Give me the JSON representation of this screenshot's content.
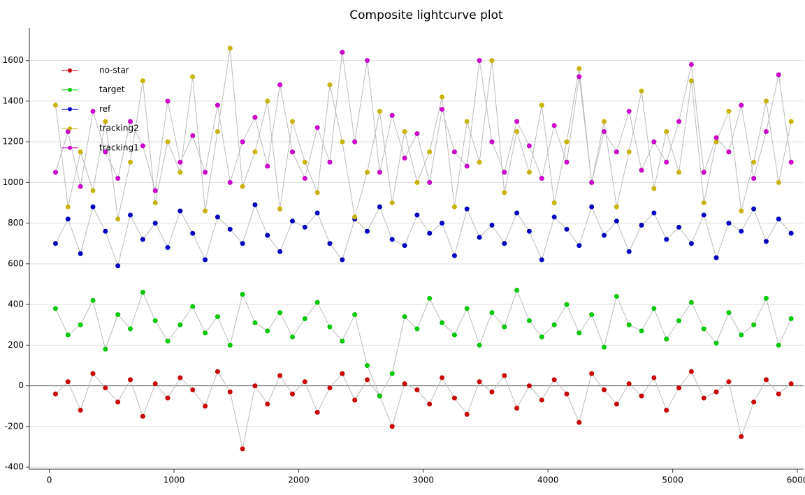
{
  "chart_data": {
    "type": "scatter",
    "title": "Composite lightcurve plot",
    "x": [
      50,
      150,
      250,
      350,
      450,
      550,
      650,
      750,
      850,
      950,
      1050,
      1150,
      1250,
      1350,
      1450,
      1550,
      1650,
      1750,
      1850,
      1950,
      2050,
      2150,
      2250,
      2350,
      2450,
      2550,
      2650,
      2750,
      2850,
      2950,
      3050,
      3150,
      3250,
      3350,
      3450,
      3550,
      3650,
      3750,
      3850,
      3950,
      4050,
      4150,
      4250,
      4350,
      4450,
      4550,
      4650,
      4750,
      4850,
      4950,
      5050,
      5150,
      5250,
      5350,
      5450,
      5550,
      5650,
      5750,
      5850,
      5950
    ],
    "series": [
      {
        "name": "no-star",
        "color": "#c80000",
        "values": [
          -40,
          20,
          -120,
          60,
          -10,
          -80,
          30,
          -150,
          10,
          -60,
          40,
          -20,
          -100,
          70,
          -30,
          -310,
          0,
          -90,
          50,
          -40,
          20,
          -130,
          -10,
          60,
          -70,
          30,
          -50,
          -200,
          10,
          -20,
          -90,
          40,
          -60,
          -140,
          20,
          -30,
          50,
          -110,
          0,
          -70,
          30,
          -40,
          -180,
          60,
          -20,
          -90,
          10,
          -50,
          40,
          -120,
          -10,
          70,
          -60,
          -30,
          20,
          -250,
          -80,
          30,
          -40,
          10
        ]
      },
      {
        "name": "target",
        "color": "#00c800",
        "values": [
          380,
          250,
          300,
          420,
          180,
          350,
          280,
          460,
          320,
          220,
          300,
          390,
          260,
          340,
          200,
          450,
          310,
          270,
          360,
          240,
          330,
          410,
          290,
          220,
          350,
          100,
          -50,
          60,
          340,
          280,
          430,
          310,
          250,
          380,
          200,
          360,
          290,
          470,
          320,
          240,
          300,
          400,
          260,
          350,
          190,
          440,
          300,
          270,
          380,
          230,
          320,
          410,
          280,
          210,
          360,
          250,
          300,
          430,
          200,
          330
        ]
      },
      {
        "name": "ref",
        "color": "#0000c0",
        "values": [
          700,
          820,
          650,
          880,
          760,
          590,
          840,
          720,
          800,
          680,
          860,
          750,
          620,
          830,
          770,
          700,
          890,
          740,
          660,
          810,
          780,
          850,
          700,
          620,
          820,
          760,
          880,
          720,
          690,
          840,
          750,
          800,
          640,
          870,
          730,
          790,
          700,
          850,
          760,
          620,
          830,
          770,
          690,
          880,
          740,
          810,
          660,
          790,
          850,
          720,
          780,
          700,
          840,
          630,
          800,
          760,
          870,
          710,
          820,
          750
        ]
      },
      {
        "name": "tracking2",
        "color": "#c8b400",
        "values": [
          1380,
          880,
          1150,
          960,
          1300,
          820,
          1100,
          1500,
          900,
          1200,
          1050,
          1520,
          860,
          1250,
          1660,
          980,
          1150,
          1400,
          870,
          1300,
          1100,
          950,
          1480,
          1200,
          830,
          1050,
          1350,
          900,
          1250,
          1000,
          1150,
          1420,
          880,
          1300,
          1100,
          1600,
          950,
          1250,
          1050,
          1380,
          900,
          1200,
          1560,
          1000,
          1300,
          880,
          1150,
          1450,
          970,
          1250,
          1050,
          1500,
          900,
          1200,
          1350,
          860,
          1100,
          1400,
          1000,
          1300
        ]
      },
      {
        "name": "tracking1",
        "color": "#c800c8",
        "values": [
          1050,
          1250,
          980,
          1350,
          1150,
          1020,
          1300,
          1180,
          960,
          1400,
          1100,
          1230,
          1050,
          1380,
          1000,
          1200,
          1320,
          1080,
          1480,
          1150,
          1020,
          1270,
          1100,
          1640,
          1200,
          1600,
          1050,
          1330,
          1120,
          1240,
          1000,
          1360,
          1150,
          1080,
          1600,
          1200,
          1050,
          1300,
          1180,
          1020,
          1280,
          1100,
          1520,
          1000,
          1250,
          1150,
          1350,
          1060,
          1200,
          1100,
          1300,
          1580,
          1050,
          1220,
          1150,
          1380,
          1020,
          1250,
          1530,
          1100
        ]
      }
    ],
    "xlim": [
      -160,
      6050
    ],
    "xticks": [
      0,
      1000,
      2000,
      3000,
      4000,
      5000,
      6000
    ],
    "ylim": [
      -410,
      1760
    ],
    "yticks": [
      -400,
      -200,
      0,
      200,
      400,
      600,
      800,
      1000,
      1200,
      1400,
      1600
    ],
    "grid": true,
    "legend": "upper left"
  }
}
